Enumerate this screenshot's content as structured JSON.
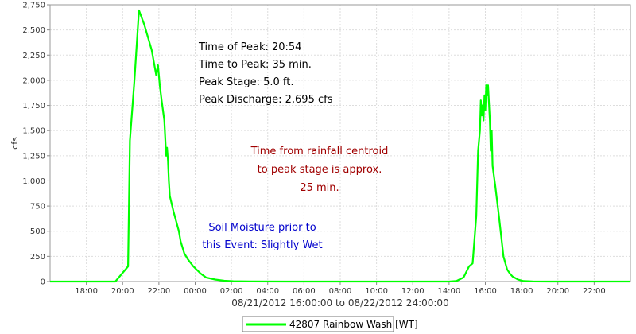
{
  "chart_data": {
    "type": "line",
    "ylabel": "cfs",
    "xlabel": "08/21/2012 16:00:00 to 08/22/2012 24:00:00",
    "ylim": [
      0,
      2750
    ],
    "yticks": [
      0,
      250,
      500,
      750,
      1000,
      1250,
      1500,
      1750,
      2000,
      2250,
      2500,
      2750
    ],
    "ytick_labels": [
      "0",
      "250",
      "500",
      "750",
      "1,000",
      "1,250",
      "1,500",
      "1,750",
      "2,000",
      "2,250",
      "2,500",
      "2,750"
    ],
    "xlim": [
      16.0,
      48.0
    ],
    "xticks": [
      18,
      20,
      22,
      24,
      26,
      28,
      30,
      32,
      34,
      36,
      38,
      40,
      42,
      44,
      46
    ],
    "xtick_labels": [
      "18:00",
      "20:00",
      "22:00",
      "00:00",
      "02:00",
      "04:00",
      "06:00",
      "08:00",
      "10:00",
      "12:00",
      "14:00",
      "16:00",
      "18:00",
      "20:00",
      "22:00"
    ],
    "grid": true,
    "legend": "bottom-center",
    "series": [
      {
        "name": "42807 Rainbow Wash [WT]",
        "color": "#00ff00",
        "x": [
          16.0,
          19.6,
          20.3,
          20.4,
          20.65,
          20.9,
          21.2,
          21.6,
          21.85,
          21.95,
          22.05,
          22.15,
          22.3,
          22.4,
          22.45,
          22.5,
          22.55,
          22.6,
          22.8,
          23.1,
          23.2,
          23.4,
          23.6,
          23.9,
          24.3,
          24.6,
          25.1,
          25.6,
          26.1,
          27.0,
          29.0,
          38.0,
          38.4,
          38.8,
          39.1,
          39.3,
          39.5,
          39.6,
          39.7,
          39.75,
          39.8,
          39.85,
          39.9,
          39.95,
          40.0,
          40.05,
          40.1,
          40.15,
          40.25,
          40.3,
          40.35,
          40.4,
          40.55,
          40.75,
          41.0,
          41.2,
          41.35,
          41.5,
          41.8,
          42.1,
          42.6,
          43.5,
          44.0,
          48.0
        ],
        "y": [
          0,
          0,
          150,
          1400,
          2000,
          2695,
          2550,
          2300,
          2050,
          2150,
          1950,
          1800,
          1600,
          1250,
          1330,
          1200,
          1000,
          850,
          700,
          500,
          400,
          280,
          220,
          150,
          80,
          40,
          20,
          8,
          3,
          1,
          0,
          0,
          5,
          40,
          150,
          180,
          650,
          1300,
          1500,
          1800,
          1650,
          1750,
          1600,
          1850,
          1700,
          1950,
          1850,
          1950,
          1600,
          1300,
          1500,
          1150,
          950,
          650,
          250,
          120,
          80,
          50,
          20,
          5,
          1,
          0,
          0,
          0
        ]
      }
    ],
    "annotations": [
      {
        "text": "Time of Peak: 20:54",
        "color": "#000000"
      },
      {
        "text": "Time to Peak: 35 min.",
        "color": "#000000"
      },
      {
        "text": "Peak Stage: 5.0 ft.",
        "color": "#000000"
      },
      {
        "text": "Peak Discharge: 2,695 cfs",
        "color": "#000000"
      },
      {
        "text": "Time from rainfall centroid",
        "color": "#a00000"
      },
      {
        "text": "to peak stage is approx.",
        "color": "#a00000"
      },
      {
        "text": "25 min.",
        "color": "#a00000"
      },
      {
        "text": "Soil Moisture prior to",
        "color": "#0000cc"
      },
      {
        "text": "this Event: Slightly Wet",
        "color": "#0000cc"
      }
    ]
  }
}
